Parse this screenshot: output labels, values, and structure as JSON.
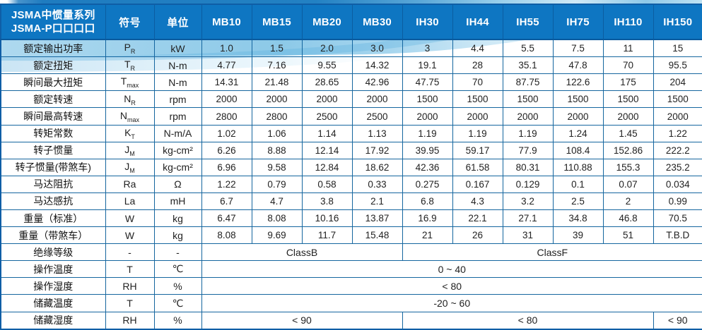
{
  "table": {
    "title_line1": "JSMA中惯量系列",
    "title_line2": "JSMA-P口口口口",
    "symbol_header": "符号",
    "unit_header": "单位",
    "models": [
      "MB10",
      "MB15",
      "MB20",
      "MB30",
      "IH30",
      "IH44",
      "IH55",
      "IH75",
      "IH110",
      "IH150"
    ],
    "rows": [
      {
        "label": "额定输出功率",
        "symbol": "P",
        "symbol_sub": "R",
        "unit": "kW",
        "values": [
          "1.0",
          "1.5",
          "2.0",
          "3.0",
          "3",
          "4.4",
          "5.5",
          "7.5",
          "11",
          "15"
        ]
      },
      {
        "label": "额定扭矩",
        "symbol": "T",
        "symbol_sub": "R",
        "unit": "N-m",
        "values": [
          "4.77",
          "7.16",
          "9.55",
          "14.32",
          "19.1",
          "28",
          "35.1",
          "47.8",
          "70",
          "95.5"
        ]
      },
      {
        "label": "瞬间最大扭矩",
        "symbol": "T",
        "symbol_sub": "max",
        "unit": "N-m",
        "values": [
          "14.31",
          "21.48",
          "28.65",
          "42.96",
          "47.75",
          "70",
          "87.75",
          "122.6",
          "175",
          "204"
        ]
      },
      {
        "label": "额定转速",
        "symbol": "N",
        "symbol_sub": "R",
        "unit": "rpm",
        "values": [
          "2000",
          "2000",
          "2000",
          "2000",
          "1500",
          "1500",
          "1500",
          "1500",
          "1500",
          "1500"
        ]
      },
      {
        "label": "瞬间最高转速",
        "symbol": "N",
        "symbol_sub": "max",
        "unit": "rpm",
        "values": [
          "2800",
          "2800",
          "2500",
          "2500",
          "2000",
          "2000",
          "2000",
          "2000",
          "2000",
          "2000"
        ]
      },
      {
        "label": "转矩常数",
        "symbol": "K",
        "symbol_sub": "T",
        "unit": "N-m/A",
        "values": [
          "1.02",
          "1.06",
          "1.14",
          "1.13",
          "1.19",
          "1.19",
          "1.19",
          "1.24",
          "1.45",
          "1.22"
        ]
      },
      {
        "label": "转子惯量",
        "symbol": "J",
        "symbol_sub": "M",
        "unit": "kg-cm²",
        "values": [
          "6.26",
          "8.88",
          "12.14",
          "17.92",
          "39.95",
          "59.17",
          "77.9",
          "108.4",
          "152.86",
          "222.2"
        ]
      },
      {
        "label": "转子惯量(带煞车)",
        "symbol": "J",
        "symbol_sub": "M",
        "unit": "kg-cm²",
        "values": [
          "6.96",
          "9.58",
          "12.84",
          "18.62",
          "42.36",
          "61.58",
          "80.31",
          "110.88",
          "155.3",
          "235.2"
        ]
      },
      {
        "label": "马达阻抗",
        "symbol": "Ra",
        "symbol_sub": "",
        "unit": "Ω",
        "values": [
          "1.22",
          "0.79",
          "0.58",
          "0.33",
          "0.275",
          "0.167",
          "0.129",
          "0.1",
          "0.07",
          "0.034"
        ]
      },
      {
        "label": "马达感抗",
        "symbol": "La",
        "symbol_sub": "",
        "unit": "mH",
        "values": [
          "6.7",
          "4.7",
          "3.8",
          "2.1",
          "6.8",
          "4.3",
          "3.2",
          "2.5",
          "2",
          "0.99"
        ]
      },
      {
        "label": "重量（标准）",
        "symbol": "W",
        "symbol_sub": "",
        "unit": "kg",
        "values": [
          "6.47",
          "8.08",
          "10.16",
          "13.87",
          "16.9",
          "22.1",
          "27.1",
          "34.8",
          "46.8",
          "70.5"
        ]
      },
      {
        "label": "重量（带煞车）",
        "symbol": "W",
        "symbol_sub": "",
        "unit": "kg",
        "values": [
          "8.08",
          "9.69",
          "11.7",
          "15.48",
          "21",
          "26",
          "31",
          "39",
          "51",
          "T.B.D"
        ]
      },
      {
        "label": "绝缘等级",
        "symbol": "-",
        "symbol_sub": "",
        "unit": "-",
        "spans": [
          {
            "text": "ClassB",
            "cols": 4
          },
          {
            "text": "ClassF",
            "cols": 6
          }
        ]
      },
      {
        "label": "操作温度",
        "symbol": "T",
        "symbol_sub": "",
        "unit": "℃",
        "spans": [
          {
            "text": "0 ~ 40",
            "cols": 10
          }
        ]
      },
      {
        "label": "操作湿度",
        "symbol": "RH",
        "symbol_sub": "",
        "unit": "%",
        "spans": [
          {
            "text": "< 80",
            "cols": 10
          }
        ]
      },
      {
        "label": "储藏温度",
        "symbol": "T",
        "symbol_sub": "",
        "unit": "℃",
        "spans": [
          {
            "text": "-20 ~ 60",
            "cols": 10
          }
        ]
      },
      {
        "label": "储藏湿度",
        "symbol": "RH",
        "symbol_sub": "",
        "unit": "%",
        "spans": [
          {
            "text": "< 90",
            "cols": 4
          },
          {
            "text": "< 80",
            "cols": 5
          },
          {
            "text": "< 90",
            "cols": 1
          }
        ]
      }
    ]
  },
  "colors": {
    "header_blue": "#0e76c2",
    "border_blue": "#15669f",
    "outer_border": "#0f5ea6",
    "swoosh_light_blue": "#8fcce9",
    "text_dark": "#222222"
  }
}
